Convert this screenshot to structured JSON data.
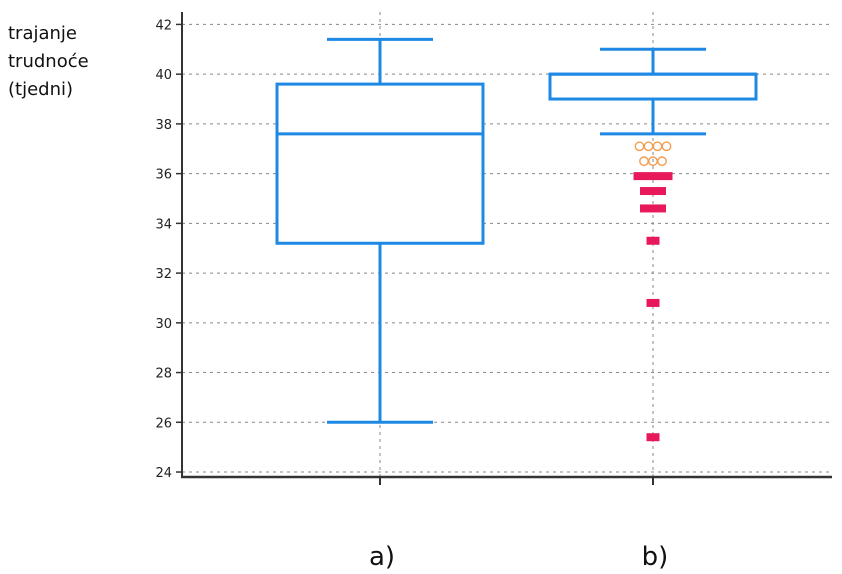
{
  "chart_data": {
    "type": "box",
    "ylabel_lines": [
      "trajanje",
      "trudnoće",
      "(tjedni)"
    ],
    "ylim": [
      23.8,
      42.5
    ],
    "yticks": [
      24,
      26,
      28,
      30,
      32,
      34,
      36,
      38,
      40,
      42
    ],
    "grid": true,
    "categories": [
      "a)",
      "b)"
    ],
    "boxes": [
      {
        "category": "a)",
        "whisker_low": 26.0,
        "q1": 33.2,
        "median": 37.6,
        "q3": 39.6,
        "whisker_high": 41.4,
        "outliers_open": [],
        "outliers_filled": []
      },
      {
        "category": "b)",
        "whisker_low": 37.6,
        "q1": 39.0,
        "median": 40.0,
        "q3": 40.0,
        "whisker_high": 41.0,
        "outliers_open": [
          37.1,
          37.1,
          37.1,
          37.1,
          36.5,
          36.5,
          36.5
        ],
        "outliers_filled": [
          35.9,
          35.9,
          35.9,
          35.3,
          35.3,
          34.6,
          34.6,
          33.3,
          30.8,
          25.4
        ]
      }
    ],
    "colors": {
      "box": "#1e88e5",
      "outlier_open": "#f39c4f",
      "outlier_filled": "#e8195a",
      "grid": "#888888",
      "axis": "#333333"
    }
  }
}
